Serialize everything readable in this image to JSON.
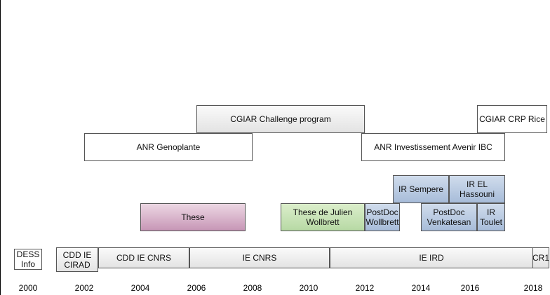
{
  "years": [
    "2000",
    "2002",
    "2004",
    "2006",
    "2008",
    "2010",
    "2012",
    "2014",
    "2016",
    "2018"
  ],
  "bars": [
    {
      "id": "cgiar-challenge",
      "label": "CGIAR Challenge program",
      "start": 2006,
      "end": 2012,
      "lane": "programs-top",
      "fill": "gray"
    },
    {
      "id": "cgiar-crp-rice",
      "label": "CGIAR CRP Rice",
      "start": 2016,
      "end": 2018,
      "lane": "programs-top",
      "fill": "white"
    },
    {
      "id": "anr-genoplante",
      "label": "ANR Genoplante",
      "start": 2002,
      "end": 2008,
      "lane": "programs-bottom",
      "fill": "white"
    },
    {
      "id": "anr-ibc",
      "label": "ANR Investissement Avenir IBC",
      "start": 2011.9,
      "end": 2017,
      "lane": "programs-bottom",
      "fill": "white"
    },
    {
      "id": "ir-sempere",
      "label": "IR Sempere",
      "start": 2013,
      "end": 2015,
      "lane": "staff-top",
      "fill": "blue"
    },
    {
      "id": "ir-el-hassouni",
      "label": "IR EL Hassouni",
      "start": 2015,
      "end": 2017,
      "lane": "staff-top",
      "fill": "blue"
    },
    {
      "id": "these",
      "label": "These",
      "start": 2004,
      "end": 2007.5,
      "lane": "staff-bottom",
      "fill": "purple"
    },
    {
      "id": "these-wollbrett",
      "label": "These de Julien Wollbrett",
      "start": 2009,
      "end": 2012,
      "lane": "staff-bottom",
      "fill": "green"
    },
    {
      "id": "postdoc-wollbrett",
      "label": "PostDoc Wollbrett",
      "start": 2012,
      "end": 2013.25,
      "lane": "staff-bottom",
      "fill": "blue"
    },
    {
      "id": "postdoc-venkatesan",
      "label": "PostDoc Venkatesan",
      "start": 2014,
      "end": 2016,
      "lane": "staff-bottom",
      "fill": "blue"
    },
    {
      "id": "ir-toulet",
      "label": "IR Toulet",
      "start": 2016,
      "end": 2017,
      "lane": "staff-bottom",
      "fill": "blue"
    },
    {
      "id": "dess-info",
      "label": "DESS Info",
      "start": 2000,
      "end": 2000.5,
      "lane": "career",
      "fill": "white"
    },
    {
      "id": "cdd-ie-cirad",
      "label": "CDD IE CIRAD",
      "start": 2002,
      "end": 2003.5,
      "lane": "career",
      "fill": "gray"
    },
    {
      "id": "cdd-ie-cnrs",
      "label": "CDD IE CNRS",
      "start": 2003.5,
      "end": 2005.75,
      "lane": "career",
      "fill": "gray"
    },
    {
      "id": "ie-cnrs",
      "label": "IE CNRS",
      "start": 2005.75,
      "end": 2010.75,
      "lane": "career",
      "fill": "gray"
    },
    {
      "id": "ie-ird",
      "label": "IE IRD",
      "start": 2010.75,
      "end": 2018,
      "lane": "career",
      "fill": "gray"
    },
    {
      "id": "cr1",
      "label": "CR1",
      "start": 2018,
      "end": 2018.6,
      "lane": "career",
      "fill": "gray"
    }
  ]
}
